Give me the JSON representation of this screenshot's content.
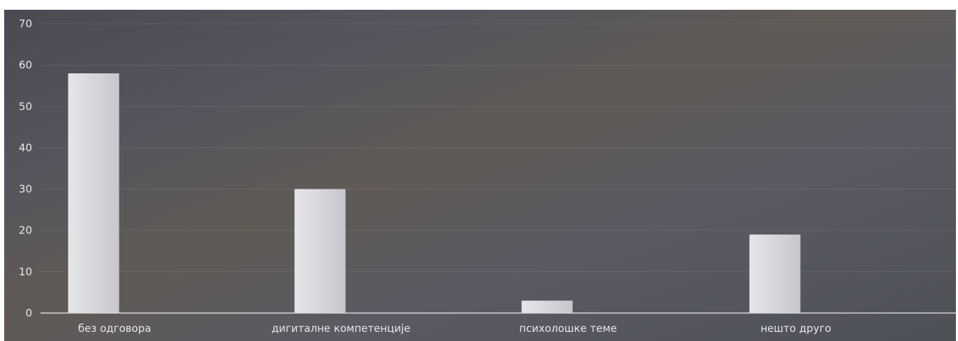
{
  "chart_data": {
    "type": "bar",
    "categories": [
      "без одговора",
      "дигиталне компетенције",
      "психолошке теме",
      "нешто друго"
    ],
    "values": [
      58,
      30,
      3,
      19
    ],
    "ylim": [
      0,
      70
    ],
    "yticks": [
      0,
      10,
      20,
      30,
      40,
      50,
      60,
      70
    ],
    "ytick_labels": [
      "0",
      "10",
      "20",
      "30",
      "40",
      "50",
      "60",
      "70"
    ],
    "grid": true,
    "legend": "none",
    "title": "",
    "xlabel": "",
    "ylabel": "",
    "colors": {
      "bar": "#d4d4da",
      "grid": "#8a8a8f",
      "axis": "#d8d8d8",
      "text": "#e8e8e8"
    }
  }
}
